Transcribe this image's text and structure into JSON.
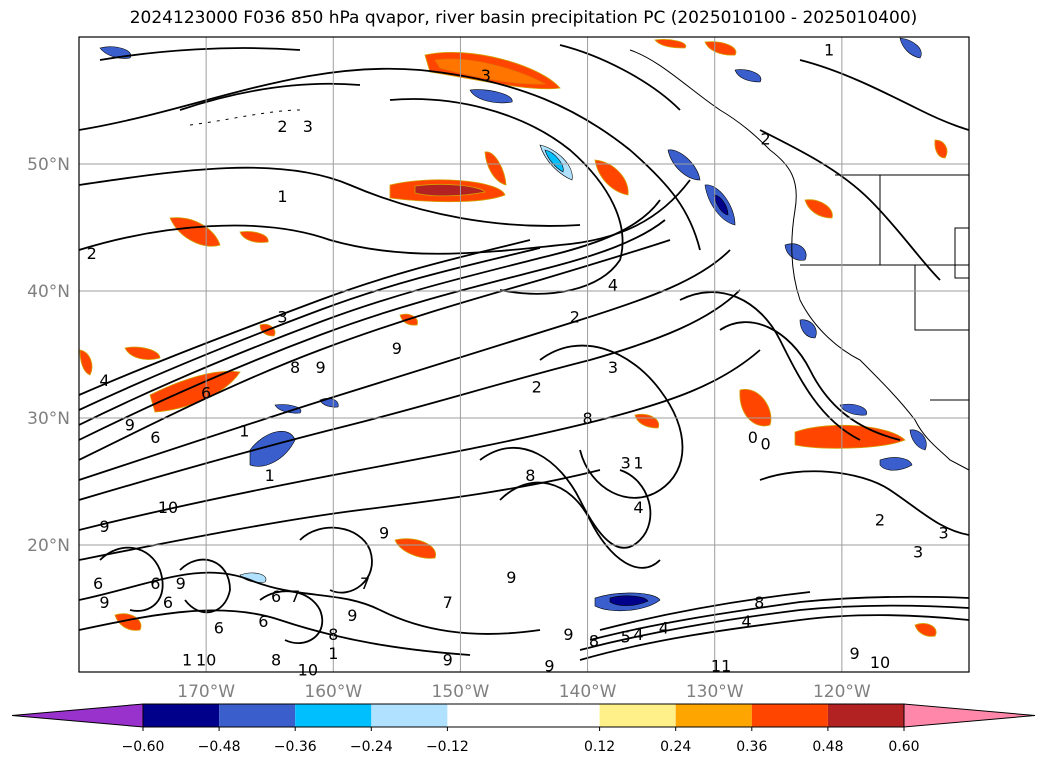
{
  "title": "2024123000 F036 850 hPa qvapor, river basin precipitation PC (2025010100 - 2025010400)",
  "map": {
    "lon_range": [
      -180,
      -110
    ],
    "lat_range": [
      10,
      60
    ],
    "lon_ticks": [
      {
        "value": -170,
        "label": "170°W"
      },
      {
        "value": -160,
        "label": "160°W"
      },
      {
        "value": -150,
        "label": "150°W"
      },
      {
        "value": -140,
        "label": "140°W"
      },
      {
        "value": -130,
        "label": "130°W"
      },
      {
        "value": -120,
        "label": "120°W"
      }
    ],
    "lat_ticks": [
      {
        "value": 20,
        "label": "20°N"
      },
      {
        "value": 30,
        "label": "30°N"
      },
      {
        "value": 40,
        "label": "40°N"
      },
      {
        "value": 50,
        "label": "50°N"
      }
    ],
    "grid": true
  },
  "colorbar": {
    "extend": "both",
    "boundaries": [
      -0.72,
      -0.6,
      -0.48,
      -0.36,
      -0.24,
      -0.12,
      0.12,
      0.24,
      0.36,
      0.48,
      0.6,
      0.72
    ],
    "colors": [
      "#9932cc",
      "#00008b",
      "#3a5fcd",
      "#00bfff",
      "#b0e2ff",
      "#ffffff",
      "#fff08a",
      "#ffa500",
      "#ff4500",
      "#b22222",
      "#ff88aa"
    ],
    "under_color": "#9932cc",
    "over_color": "#ff88aa",
    "ticks": [
      "−0.60",
      "−0.48",
      "−0.36",
      "−0.24",
      "−0.12",
      "0.12",
      "0.24",
      "0.36",
      "0.48",
      "0.60"
    ]
  },
  "contour_labels": [
    {
      "text": "1",
      "lon": -121,
      "lat": 59
    },
    {
      "text": "3",
      "lon": -148,
      "lat": 57
    },
    {
      "text": "2",
      "lon": -164,
      "lat": 53
    },
    {
      "text": "3",
      "lon": -162,
      "lat": 53
    },
    {
      "text": "1",
      "lon": -164,
      "lat": 47.5
    },
    {
      "text": "2",
      "lon": -179,
      "lat": 43
    },
    {
      "text": "2",
      "lon": -126,
      "lat": 52
    },
    {
      "text": "4",
      "lon": -138,
      "lat": 40.5
    },
    {
      "text": "2",
      "lon": -141,
      "lat": 38
    },
    {
      "text": "3",
      "lon": -164,
      "lat": 38
    },
    {
      "text": "9",
      "lon": -155,
      "lat": 35.5
    },
    {
      "text": "8",
      "lon": -163,
      "lat": 34
    },
    {
      "text": "9",
      "lon": -161,
      "lat": 34
    },
    {
      "text": "3",
      "lon": -138,
      "lat": 34
    },
    {
      "text": "2",
      "lon": -144,
      "lat": 32.5
    },
    {
      "text": "4",
      "lon": -178,
      "lat": 33
    },
    {
      "text": "6",
      "lon": -170,
      "lat": 32
    },
    {
      "text": "9",
      "lon": -176,
      "lat": 29.5
    },
    {
      "text": "6",
      "lon": -174,
      "lat": 28.5
    },
    {
      "text": "1",
      "lon": -167,
      "lat": 29
    },
    {
      "text": "8",
      "lon": -140,
      "lat": 30
    },
    {
      "text": "1",
      "lon": -165,
      "lat": 25.5
    },
    {
      "text": "1",
      "lon": -136,
      "lat": 26.5
    },
    {
      "text": "3",
      "lon": -137,
      "lat": 26.5
    },
    {
      "text": "8",
      "lon": -144.5,
      "lat": 25.5
    },
    {
      "text": "0",
      "lon": -127,
      "lat": 28.5
    },
    {
      "text": "0",
      "lon": -126,
      "lat": 28
    },
    {
      "text": "10",
      "lon": -173,
      "lat": 23
    },
    {
      "text": "4",
      "lon": -136,
      "lat": 23
    },
    {
      "text": "2",
      "lon": -117,
      "lat": 22
    },
    {
      "text": "9",
      "lon": -178,
      "lat": 21.5
    },
    {
      "text": "9",
      "lon": -156,
      "lat": 21
    },
    {
      "text": "3",
      "lon": -112,
      "lat": 21
    },
    {
      "text": "3",
      "lon": -114,
      "lat": 19.5
    },
    {
      "text": "6",
      "lon": -178.5,
      "lat": 17
    },
    {
      "text": "6",
      "lon": -174,
      "lat": 17
    },
    {
      "text": "9",
      "lon": -172,
      "lat": 17
    },
    {
      "text": "9",
      "lon": -178,
      "lat": 15.5
    },
    {
      "text": "6",
      "lon": -173,
      "lat": 15.5
    },
    {
      "text": "6",
      "lon": -164.5,
      "lat": 16
    },
    {
      "text": "7",
      "lon": -163,
      "lat": 16
    },
    {
      "text": "7",
      "lon": -157.5,
      "lat": 17
    },
    {
      "text": "7",
      "lon": -151,
      "lat": 15.5
    },
    {
      "text": "9",
      "lon": -146,
      "lat": 17.5
    },
    {
      "text": "9",
      "lon": -158.5,
      "lat": 14.5
    },
    {
      "text": "6",
      "lon": -165.5,
      "lat": 14
    },
    {
      "text": "6",
      "lon": -169,
      "lat": 13.5
    },
    {
      "text": "8",
      "lon": -160,
      "lat": 13
    },
    {
      "text": "9",
      "lon": -141.5,
      "lat": 13
    },
    {
      "text": "5",
      "lon": -137,
      "lat": 12.8
    },
    {
      "text": "4",
      "lon": -136,
      "lat": 13
    },
    {
      "text": "4",
      "lon": -134,
      "lat": 13.5
    },
    {
      "text": "8",
      "lon": -139.5,
      "lat": 12.5
    },
    {
      "text": "4",
      "lon": -127.5,
      "lat": 14
    },
    {
      "text": "8",
      "lon": -126.5,
      "lat": 15.5
    },
    {
      "text": "10",
      "lon": -170,
      "lat": 11
    },
    {
      "text": "1",
      "lon": -171.5,
      "lat": 11
    },
    {
      "text": "8",
      "lon": -164.5,
      "lat": 11
    },
    {
      "text": "1",
      "lon": -160,
      "lat": 11.5
    },
    {
      "text": "10",
      "lon": -162,
      "lat": 10.2
    },
    {
      "text": "9",
      "lon": -151,
      "lat": 11
    },
    {
      "text": "9",
      "lon": -143,
      "lat": 10.5
    },
    {
      "text": "11",
      "lon": -129.5,
      "lat": 10.5
    },
    {
      "text": "10",
      "lon": -117,
      "lat": 10.8
    },
    {
      "text": "9",
      "lon": -119,
      "lat": 11.5
    }
  ]
}
